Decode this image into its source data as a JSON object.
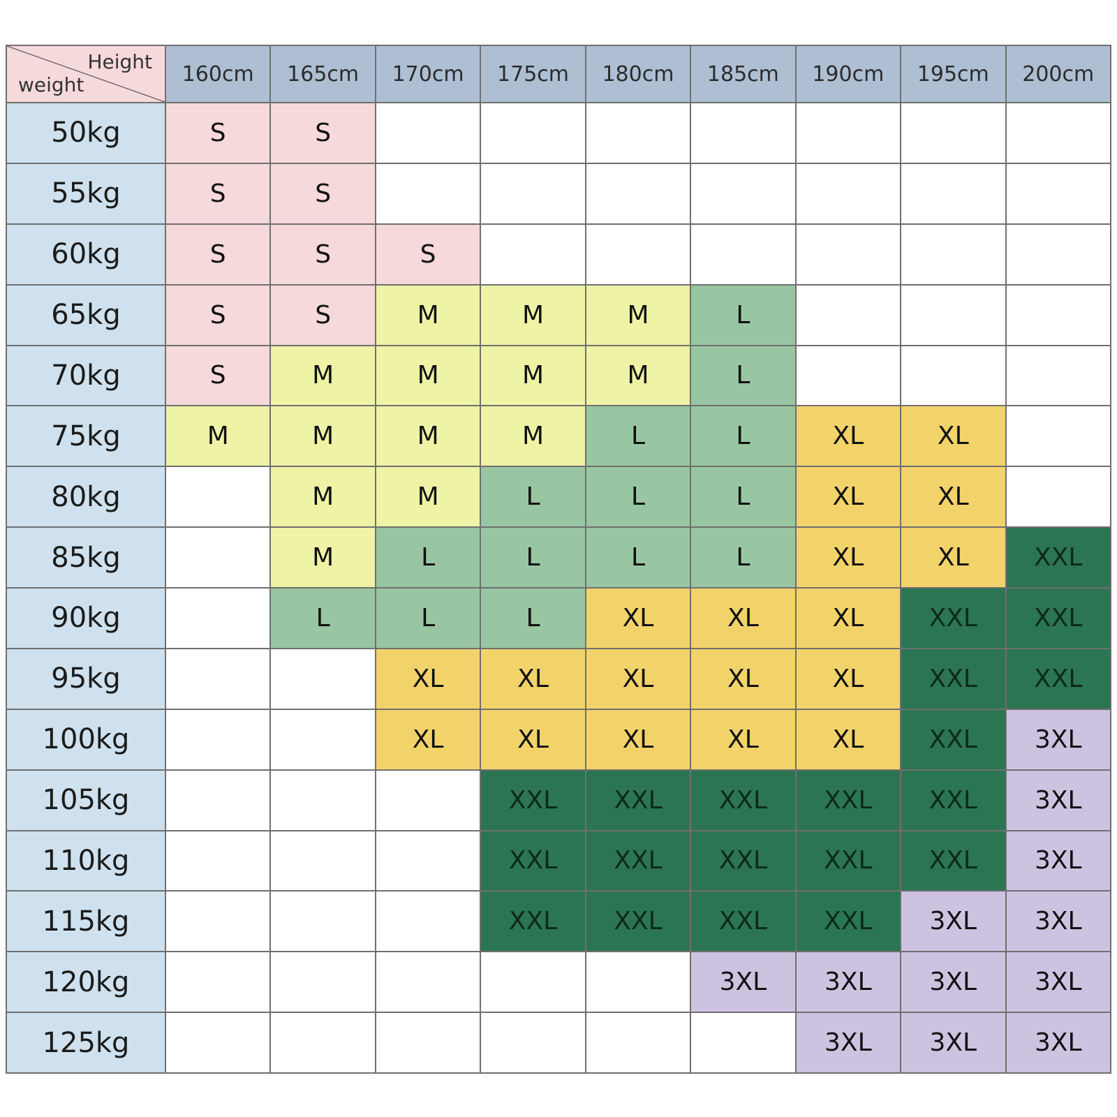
{
  "chart_data": {
    "type": "table",
    "corner": {
      "col_label": "Height",
      "row_label": "weight"
    },
    "columns": [
      "160cm",
      "165cm",
      "170cm",
      "175cm",
      "180cm",
      "185cm",
      "190cm",
      "195cm",
      "200cm"
    ],
    "rows": [
      "50kg",
      "55kg",
      "60kg",
      "65kg",
      "70kg",
      "75kg",
      "80kg",
      "85kg",
      "90kg",
      "95kg",
      "100kg",
      "105kg",
      "110kg",
      "115kg",
      "120kg",
      "125kg"
    ],
    "cells": [
      [
        "S",
        "S",
        "",
        "",
        "",
        "",
        "",
        "",
        ""
      ],
      [
        "S",
        "S",
        "",
        "",
        "",
        "",
        "",
        "",
        ""
      ],
      [
        "S",
        "S",
        "S",
        "",
        "",
        "",
        "",
        "",
        ""
      ],
      [
        "S",
        "S",
        "M",
        "M",
        "M",
        "L",
        "",
        "",
        ""
      ],
      [
        "S",
        "M",
        "M",
        "M",
        "M",
        "L",
        "",
        "",
        ""
      ],
      [
        "M",
        "M",
        "M",
        "M",
        "L",
        "L",
        "XL",
        "XL",
        ""
      ],
      [
        "",
        "M",
        "M",
        "L",
        "L",
        "L",
        "XL",
        "XL",
        ""
      ],
      [
        "",
        "M",
        "L",
        "L",
        "L",
        "L",
        "XL",
        "XL",
        "XXL"
      ],
      [
        "",
        "L",
        "L",
        "L",
        "XL",
        "XL",
        "XL",
        "XXL",
        "XXL"
      ],
      [
        "",
        "",
        "XL",
        "XL",
        "XL",
        "XL",
        "XL",
        "XXL",
        "XXL"
      ],
      [
        "",
        "",
        "XL",
        "XL",
        "XL",
        "XL",
        "XL",
        "XXL",
        "3XL"
      ],
      [
        "",
        "",
        "",
        "XXL",
        "XXL",
        "XXL",
        "XXL",
        "XXL",
        "3XL"
      ],
      [
        "",
        "",
        "",
        "XXL",
        "XXL",
        "XXL",
        "XXL",
        "XXL",
        "3XL"
      ],
      [
        "",
        "",
        "",
        "XXL",
        "XXL",
        "XXL",
        "XXL",
        "3XL",
        "3XL"
      ],
      [
        "",
        "",
        "",
        "",
        "",
        "3XL",
        "3XL",
        "3XL",
        "3XL"
      ],
      [
        "",
        "",
        "",
        "",
        "",
        "",
        "3XL",
        "3XL",
        "3XL"
      ]
    ],
    "size_colors": {
      "S": "#f6d9da",
      "M": "#eef3a6",
      "L": "#99c6a2",
      "XL": "#f2d36a",
      "XXL": "#2c7553",
      "3XL": "#cdc3e1",
      "": "#ffffff"
    },
    "header_color": "#aebfd4",
    "row_header_color": "#cfe1ee"
  }
}
